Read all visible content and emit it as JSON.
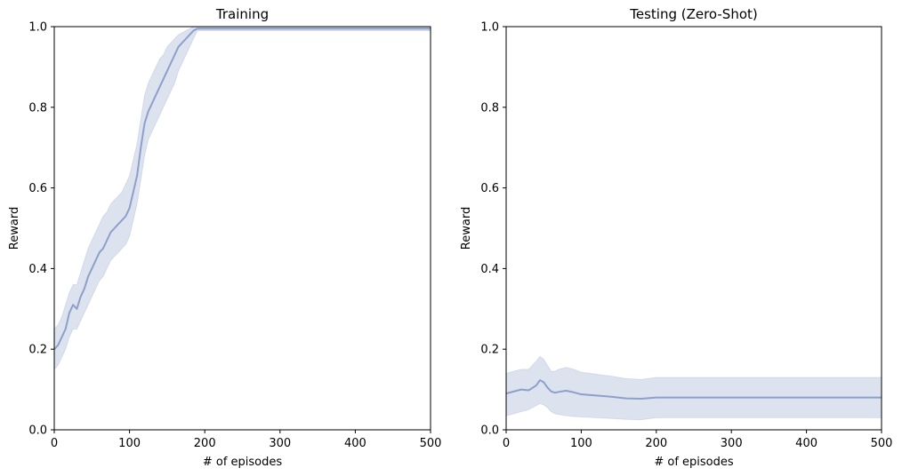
{
  "chart_data": [
    {
      "type": "line",
      "title": "Training",
      "xlabel": "# of episodes",
      "ylabel": "Reward",
      "xlim": [
        0,
        500
      ],
      "ylim": [
        0,
        1
      ],
      "xticks": [
        0,
        100,
        200,
        300,
        400,
        500
      ],
      "yticks": [
        0,
        0.2,
        0.4,
        0.6,
        0.8,
        1
      ],
      "xtick_labels": [
        "0",
        "100",
        "200",
        "300",
        "400",
        "500"
      ],
      "ytick_labels": [
        "0.0",
        "0.2",
        "0.4",
        "0.6",
        "0.8",
        "1.0"
      ],
      "grid": false,
      "legend": false,
      "line_color": "#8da0cb",
      "band_color": "#8da0cb",
      "series": [
        {
          "x": [
            0,
            5,
            10,
            15,
            20,
            25,
            30,
            35,
            40,
            45,
            50,
            55,
            60,
            65,
            70,
            75,
            80,
            85,
            90,
            95,
            100,
            105,
            110,
            115,
            120,
            125,
            130,
            135,
            140,
            145,
            150,
            155,
            160,
            165,
            170,
            175,
            180,
            185,
            190,
            195,
            200,
            250,
            300,
            350,
            400,
            450,
            500
          ],
          "y": [
            0.2,
            0.21,
            0.23,
            0.25,
            0.29,
            0.31,
            0.3,
            0.33,
            0.35,
            0.38,
            0.4,
            0.42,
            0.44,
            0.45,
            0.47,
            0.49,
            0.5,
            0.51,
            0.52,
            0.53,
            0.55,
            0.59,
            0.63,
            0.7,
            0.76,
            0.79,
            0.81,
            0.83,
            0.85,
            0.87,
            0.89,
            0.91,
            0.93,
            0.95,
            0.96,
            0.97,
            0.98,
            0.99,
            0.995,
            0.995,
            0.995,
            0.995,
            0.995,
            0.995,
            0.995,
            0.995,
            0.995
          ],
          "lower": [
            0.15,
            0.16,
            0.18,
            0.2,
            0.23,
            0.25,
            0.25,
            0.27,
            0.29,
            0.31,
            0.33,
            0.35,
            0.37,
            0.38,
            0.4,
            0.42,
            0.43,
            0.44,
            0.45,
            0.46,
            0.48,
            0.52,
            0.56,
            0.62,
            0.68,
            0.72,
            0.74,
            0.76,
            0.78,
            0.8,
            0.82,
            0.84,
            0.86,
            0.89,
            0.91,
            0.93,
            0.95,
            0.97,
            0.99,
            0.99,
            0.99,
            0.99,
            0.99,
            0.99,
            0.99,
            0.99,
            0.99
          ],
          "upper": [
            0.25,
            0.26,
            0.28,
            0.31,
            0.34,
            0.36,
            0.36,
            0.39,
            0.42,
            0.45,
            0.47,
            0.49,
            0.51,
            0.53,
            0.54,
            0.56,
            0.57,
            0.58,
            0.59,
            0.61,
            0.63,
            0.67,
            0.71,
            0.77,
            0.83,
            0.86,
            0.88,
            0.9,
            0.92,
            0.93,
            0.95,
            0.96,
            0.97,
            0.98,
            0.985,
            0.99,
            0.995,
            1.0,
            1.0,
            1.0,
            1.0,
            1.0,
            1.0,
            1.0,
            1.0,
            1.0,
            1.0
          ]
        }
      ]
    },
    {
      "type": "line",
      "title": "Testing (Zero-Shot)",
      "xlabel": "# of episodes",
      "ylabel": "Reward",
      "xlim": [
        0,
        500
      ],
      "ylim": [
        0,
        1
      ],
      "xticks": [
        0,
        100,
        200,
        300,
        400,
        500
      ],
      "yticks": [
        0,
        0.2,
        0.4,
        0.6,
        0.8,
        1
      ],
      "xtick_labels": [
        "0",
        "100",
        "200",
        "300",
        "400",
        "500"
      ],
      "ytick_labels": [
        "0.0",
        "0.2",
        "0.4",
        "0.6",
        "0.8",
        "1.0"
      ],
      "grid": false,
      "legend": false,
      "line_color": "#8da0cb",
      "band_color": "#8da0cb",
      "series": [
        {
          "x": [
            0,
            10,
            20,
            30,
            40,
            45,
            50,
            55,
            60,
            65,
            70,
            80,
            90,
            100,
            120,
            140,
            160,
            180,
            200,
            250,
            300,
            350,
            400,
            450,
            500
          ],
          "y": [
            0.09,
            0.095,
            0.1,
            0.098,
            0.11,
            0.123,
            0.118,
            0.105,
            0.095,
            0.092,
            0.094,
            0.097,
            0.093,
            0.088,
            0.085,
            0.082,
            0.078,
            0.077,
            0.08,
            0.08,
            0.08,
            0.08,
            0.08,
            0.08,
            0.08
          ],
          "lower": [
            0.035,
            0.04,
            0.045,
            0.05,
            0.06,
            0.065,
            0.062,
            0.055,
            0.045,
            0.04,
            0.038,
            0.035,
            0.033,
            0.032,
            0.03,
            0.028,
            0.026,
            0.025,
            0.03,
            0.03,
            0.03,
            0.03,
            0.03,
            0.03,
            0.03
          ],
          "upper": [
            0.14,
            0.145,
            0.15,
            0.15,
            0.17,
            0.182,
            0.175,
            0.16,
            0.145,
            0.145,
            0.15,
            0.155,
            0.15,
            0.143,
            0.138,
            0.133,
            0.127,
            0.125,
            0.13,
            0.13,
            0.13,
            0.13,
            0.13,
            0.13,
            0.13
          ]
        }
      ]
    }
  ]
}
